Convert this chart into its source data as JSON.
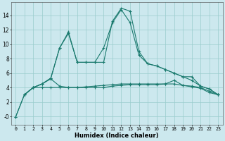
{
  "xlabel": "Humidex (Indice chaleur)",
  "bg_color": "#cce8ee",
  "grid_color": "#99cccc",
  "line_color": "#1a7a6e",
  "xlim": [
    -0.5,
    23.5
  ],
  "ylim": [
    -1.2,
    15.8
  ],
  "yticks": [
    0,
    2,
    4,
    6,
    8,
    10,
    12,
    14
  ],
  "ytick_labels": [
    "-0",
    "2",
    "4",
    "6",
    "8",
    "10",
    "12",
    "14"
  ],
  "xticks": [
    0,
    1,
    2,
    3,
    4,
    5,
    6,
    7,
    8,
    9,
    10,
    11,
    12,
    13,
    14,
    15,
    16,
    17,
    18,
    19,
    20,
    21,
    22,
    23
  ],
  "series": [
    {
      "x": [
        0,
        1,
        2,
        3,
        4,
        5,
        6,
        7,
        8,
        9,
        10,
        11,
        12,
        13,
        14,
        15,
        16,
        17,
        18,
        19,
        20,
        21,
        22,
        23
      ],
      "y": [
        -0.1,
        3.0,
        4.0,
        4.0,
        4.0,
        4.0,
        4.0,
        4.0,
        4.1,
        4.2,
        4.3,
        4.4,
        4.5,
        4.5,
        4.5,
        4.5,
        4.5,
        4.5,
        4.5,
        4.3,
        4.2,
        4.0,
        3.5,
        3.0
      ]
    },
    {
      "x": [
        0,
        1,
        2,
        3,
        4,
        5,
        6,
        7,
        8,
        9,
        10,
        11,
        12,
        13,
        14,
        15,
        16,
        17,
        18,
        19,
        20,
        21,
        22,
        23
      ],
      "y": [
        -0.1,
        3.0,
        4.0,
        4.5,
        5.2,
        4.2,
        4.0,
        4.0,
        4.0,
        4.0,
        4.0,
        4.2,
        4.3,
        4.4,
        4.4,
        4.4,
        4.4,
        4.5,
        5.0,
        4.3,
        4.1,
        3.9,
        3.3,
        3.0
      ]
    },
    {
      "x": [
        1,
        2,
        3,
        4,
        5,
        6,
        7,
        8,
        9,
        10,
        11,
        12,
        13,
        14,
        15,
        16,
        17,
        18,
        19,
        20,
        21,
        22,
        23
      ],
      "y": [
        3.0,
        4.0,
        4.5,
        5.3,
        9.5,
        11.5,
        7.5,
        7.5,
        7.5,
        9.5,
        13.0,
        14.8,
        13.0,
        8.5,
        7.3,
        7.0,
        6.5,
        6.0,
        5.5,
        5.0,
        4.2,
        3.8,
        3.0
      ]
    },
    {
      "x": [
        1,
        2,
        3,
        4,
        5,
        6,
        7,
        8,
        9,
        10,
        11,
        12,
        13,
        14,
        15,
        16,
        17,
        18,
        19,
        20,
        21,
        22,
        23
      ],
      "y": [
        3.0,
        4.0,
        4.5,
        5.3,
        9.5,
        11.7,
        7.5,
        7.5,
        7.5,
        7.5,
        13.2,
        15.0,
        14.6,
        9.0,
        7.3,
        7.0,
        6.5,
        6.0,
        5.5,
        5.5,
        4.2,
        3.8,
        3.0
      ]
    }
  ]
}
